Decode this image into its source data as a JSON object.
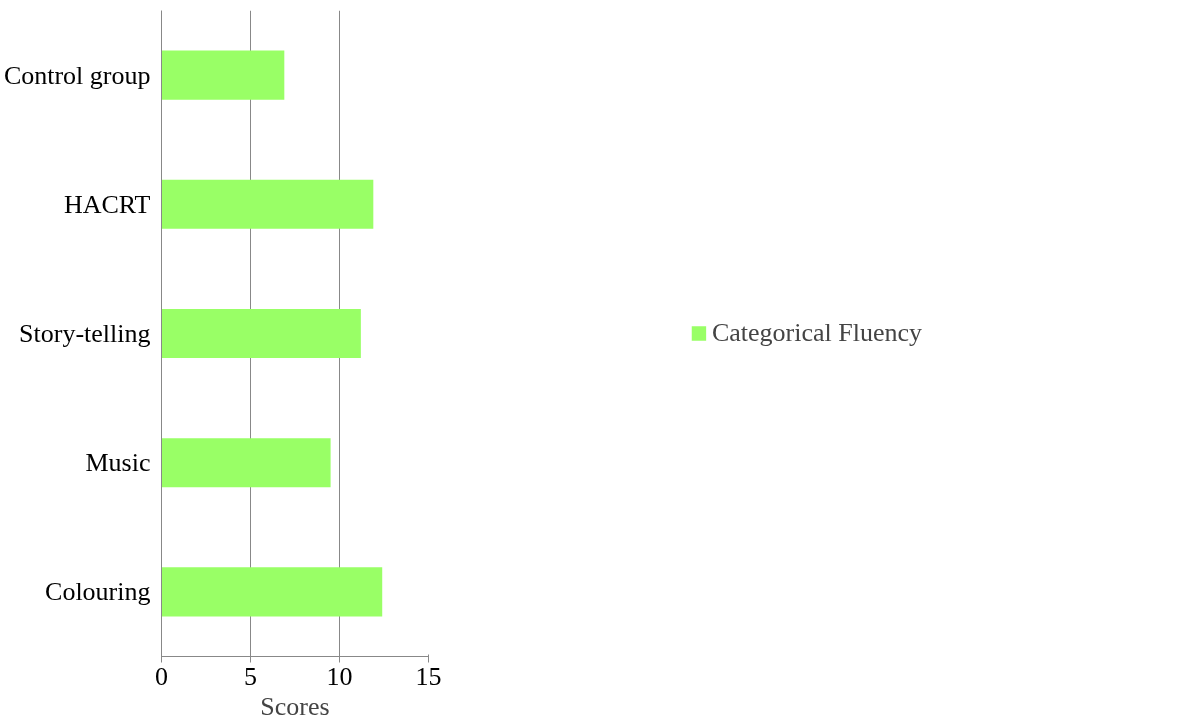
{
  "chart_data": {
    "type": "bar",
    "orientation": "horizontal",
    "xlabel": "Scores",
    "categories": [
      "Control group",
      "HACRT",
      "Story-telling",
      "Music",
      "Colouring"
    ],
    "series": [
      {
        "name": "Categorical Fluency",
        "color": "#99ff66",
        "values": [
          6.9,
          11.9,
          11.2,
          9.5,
          12.4
        ]
      }
    ],
    "xlim": [
      0,
      15
    ],
    "xticks": [
      0,
      5,
      10,
      15
    ],
    "grid": "x",
    "legend": "right"
  }
}
